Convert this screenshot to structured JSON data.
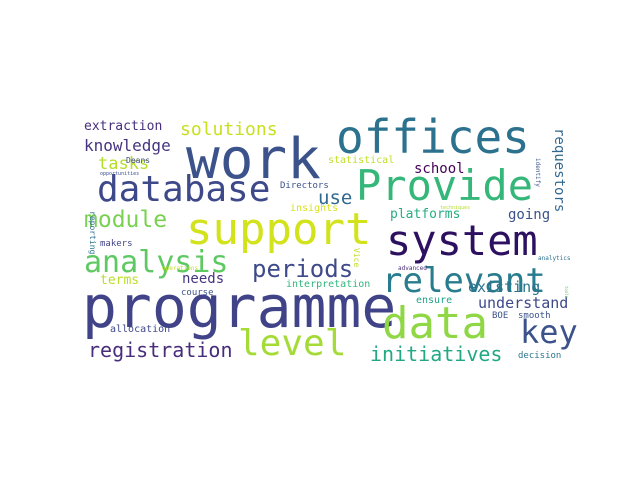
{
  "wordcloud": {
    "colors": {
      "background": "#ffffff",
      "palette": "viridis"
    },
    "words": [
      {
        "text": "work",
        "color": "#3b528b",
        "weight": 1.0
      },
      {
        "text": "offices",
        "color": "#2c728e",
        "weight": 0.92
      },
      {
        "text": "programme",
        "color": "#404387",
        "weight": 0.95
      },
      {
        "text": "database",
        "color": "#3e4989",
        "weight": 0.72
      },
      {
        "text": "Provide",
        "color": "#35b779",
        "weight": 0.78
      },
      {
        "text": "support",
        "color": "#d2e21b",
        "weight": 0.82
      },
      {
        "text": "system",
        "color": "#2d1160",
        "weight": 0.76
      },
      {
        "text": "data",
        "color": "#8fd744",
        "weight": 0.8
      },
      {
        "text": "relevant",
        "color": "#287c8e",
        "weight": 0.66
      },
      {
        "text": "analysis",
        "color": "#5ec962",
        "weight": 0.55
      },
      {
        "text": "level",
        "color": "#a5db36",
        "weight": 0.6
      },
      {
        "text": "key",
        "color": "#3b528b",
        "weight": 0.56
      },
      {
        "text": "periods",
        "color": "#3e4a89",
        "weight": 0.45
      },
      {
        "text": "module",
        "color": "#7ad151",
        "weight": 0.4
      },
      {
        "text": "registration",
        "color": "#472d7b",
        "weight": 0.34
      },
      {
        "text": "initiatives",
        "color": "#22a884",
        "weight": 0.34
      },
      {
        "text": "solutions",
        "color": "#c8e020",
        "weight": 0.32
      },
      {
        "text": "knowledge",
        "color": "#46337e",
        "weight": 0.28
      },
      {
        "text": "use",
        "color": "#31688e",
        "weight": 0.32
      },
      {
        "text": "tasks",
        "color": "#b5de2b",
        "weight": 0.28
      },
      {
        "text": "extraction",
        "color": "#472f7d",
        "weight": 0.22
      },
      {
        "text": "school",
        "color": "#440154",
        "weight": 0.24
      },
      {
        "text": "requestors",
        "color": "#31688e",
        "weight": 0.22
      },
      {
        "text": "platforms",
        "color": "#26ad81",
        "weight": 0.22
      },
      {
        "text": "going",
        "color": "#3b528b",
        "weight": 0.22
      },
      {
        "text": "existing",
        "color": "#2c728e",
        "weight": 0.24
      },
      {
        "text": "understand",
        "color": "#3e4989",
        "weight": 0.24
      },
      {
        "text": "needs",
        "color": "#46337e",
        "weight": 0.22
      },
      {
        "text": "terms",
        "color": "#b8de29",
        "weight": 0.22
      },
      {
        "text": "makers",
        "color": "#414487",
        "weight": 0.16
      },
      {
        "text": "allocation",
        "color": "#3e4989",
        "weight": 0.18
      },
      {
        "text": "smooth",
        "color": "#3b528b",
        "weight": 0.16
      },
      {
        "text": "ensure",
        "color": "#20a386",
        "weight": 0.16
      },
      {
        "text": "decision",
        "color": "#2a788e",
        "weight": 0.15
      },
      {
        "text": "BOE",
        "color": "#3b528b",
        "weight": 0.14
      },
      {
        "text": "Directors",
        "color": "#3b528b",
        "weight": 0.14
      },
      {
        "text": "insights",
        "color": "#d8e219",
        "weight": 0.17
      },
      {
        "text": "interpretation",
        "color": "#31b57b",
        "weight": 0.16
      },
      {
        "text": "statistical",
        "color": "#c2df23",
        "weight": 0.16
      },
      {
        "text": "course",
        "color": "#3b528b",
        "weight": 0.14
      },
      {
        "text": "Deans",
        "color": "#3e4989",
        "weight": 0.13
      },
      {
        "text": "reporting",
        "color": "#2c728e",
        "weight": 0.13
      },
      {
        "text": "Vice",
        "color": "#c2df23",
        "weight": 0.13
      },
      {
        "text": "identify",
        "color": "#3b528b",
        "weight": 0.1
      },
      {
        "text": "operations",
        "color": "#bddf26",
        "weight": 0.09
      },
      {
        "text": "opportunities",
        "color": "#3b528b",
        "weight": 0.08
      },
      {
        "text": "advanced",
        "color": "#472d7b",
        "weight": 0.08
      },
      {
        "text": "analytics",
        "color": "#2c728e",
        "weight": 0.08
      },
      {
        "text": "techniques",
        "color": "#b5de2b",
        "weight": 0.07
      },
      {
        "text": "tools",
        "color": "#5ec962",
        "weight": 0.06
      }
    ]
  }
}
